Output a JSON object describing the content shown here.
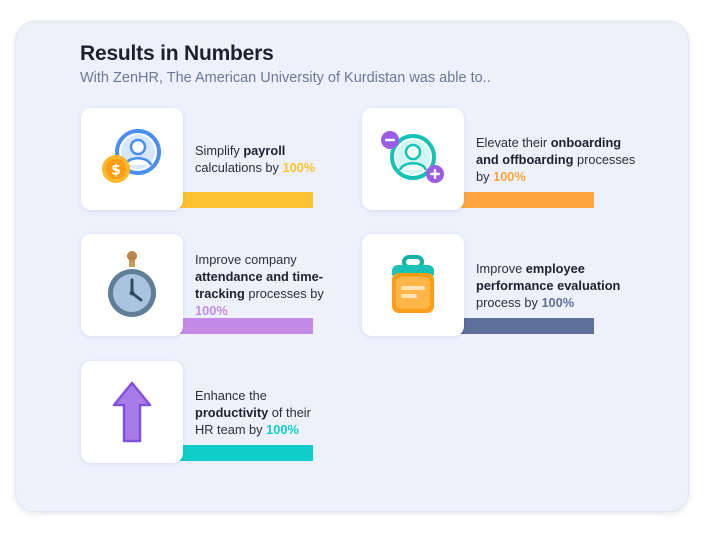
{
  "header": {
    "title": "Results in Numbers",
    "subtitle": "With ZenHR, The American University of Kurdistan was able to.."
  },
  "colors": {
    "payroll": "#fcc12f",
    "onboarding": "#fda63f",
    "attendance": "#c48be6",
    "performance": "#5e6f99",
    "productivity": "#0fcdc9"
  },
  "items": {
    "payroll": {
      "icon": "payroll-user-coin-icon",
      "pre": "Simplify ",
      "bold": "payroll",
      "post": " calculations by ",
      "percent": "100%"
    },
    "onboarding": {
      "icon": "onboarding-offboarding-icon",
      "pre": "Elevate their ",
      "bold": "onboarding and offboarding",
      "post": " processes by ",
      "percent": "100%"
    },
    "attendance": {
      "icon": "stopwatch-icon",
      "pre": "Improve company ",
      "bold": "attendance and time-tracking",
      "post": " processes by ",
      "percent": "100%"
    },
    "performance": {
      "icon": "clipboard-icon",
      "pre": "Improve ",
      "bold": "employee performance evaluation",
      "post": " process by ",
      "percent": "100%"
    },
    "productivity": {
      "icon": "arrow-up-icon",
      "pre": "Enhance the ",
      "bold": "productivity",
      "post": " of their HR team by ",
      "percent": "100%"
    }
  }
}
